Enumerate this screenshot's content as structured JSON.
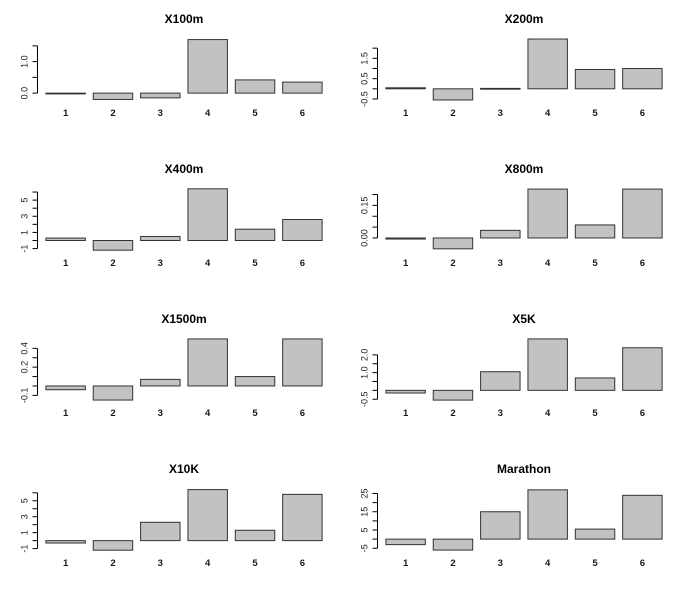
{
  "page": {
    "background": "#ffffff"
  },
  "style": {
    "bar_fill": "#c2c2c2",
    "bar_stroke": "#333333",
    "axis_color": "#000000",
    "text_color": "#1a1a1a"
  },
  "chart_data": [
    {
      "type": "bar",
      "title": "X100m",
      "categories": [
        "1",
        "2",
        "3",
        "4",
        "5",
        "6"
      ],
      "values": [
        -0.02,
        -0.2,
        -0.15,
        1.7,
        0.42,
        0.35
      ],
      "ylim": [
        -0.25,
        1.75
      ],
      "yticks": [
        0,
        0.5,
        1,
        1.5
      ],
      "ylabels": [
        {
          "at": 0,
          "text": "0.0"
        },
        {
          "at": 1,
          "text": "1.0"
        }
      ],
      "xlabel": "",
      "ylabel": "",
      "grid": false
    },
    {
      "type": "bar",
      "title": "X200m",
      "categories": [
        "1",
        "2",
        "3",
        "4",
        "5",
        "6"
      ],
      "values": [
        0.05,
        -0.55,
        0.02,
        2.45,
        0.95,
        1.0
      ],
      "ylim": [
        -0.6,
        2.5
      ],
      "yticks": [
        -0.5,
        0,
        0.5,
        1,
        1.5,
        2
      ],
      "ylabels": [
        {
          "at": -0.5,
          "text": "-0.5"
        },
        {
          "at": 0.5,
          "text": "0.5"
        },
        {
          "at": 1.5,
          "text": "1.5"
        }
      ],
      "xlabel": "",
      "ylabel": "",
      "grid": false
    },
    {
      "type": "bar",
      "title": "X400m",
      "categories": [
        "1",
        "2",
        "3",
        "4",
        "5",
        "6"
      ],
      "values": [
        0.3,
        -1.2,
        0.5,
        6.4,
        1.4,
        2.6
      ],
      "ylim": [
        -1.3,
        6.5
      ],
      "yticks": [
        -1,
        0,
        1,
        2,
        3,
        4,
        5,
        6
      ],
      "ylabels": [
        {
          "at": -1,
          "text": "-1"
        },
        {
          "at": 1,
          "text": "1"
        },
        {
          "at": 3,
          "text": "3"
        },
        {
          "at": 5,
          "text": "5"
        }
      ],
      "xlabel": "",
      "ylabel": "",
      "grid": false
    },
    {
      "type": "bar",
      "title": "X800m",
      "categories": [
        "1",
        "2",
        "3",
        "4",
        "5",
        "6"
      ],
      "values": [
        -0.005,
        -0.05,
        0.035,
        0.225,
        0.06,
        0.225
      ],
      "ylim": [
        -0.06,
        0.23
      ],
      "yticks": [
        0,
        0.05,
        0.1,
        0.15,
        0.2
      ],
      "ylabels": [
        {
          "at": 0,
          "text": "0.00"
        },
        {
          "at": 0.15,
          "text": "0.15"
        }
      ],
      "xlabel": "",
      "ylabel": "",
      "grid": false
    },
    {
      "type": "bar",
      "title": "X1500m",
      "categories": [
        "1",
        "2",
        "3",
        "4",
        "5",
        "6"
      ],
      "values": [
        -0.04,
        -0.15,
        0.07,
        0.5,
        0.1,
        0.5
      ],
      "ylim": [
        -0.16,
        0.51
      ],
      "yticks": [
        -0.1,
        0,
        0.1,
        0.2,
        0.3,
        0.4
      ],
      "ylabels": [
        {
          "at": -0.1,
          "text": "-0.1"
        },
        {
          "at": 0.2,
          "text": "0.2"
        },
        {
          "at": 0.4,
          "text": "0.4"
        }
      ],
      "xlabel": "",
      "ylabel": "",
      "grid": false
    },
    {
      "type": "bar",
      "title": "X5K",
      "categories": [
        "1",
        "2",
        "3",
        "4",
        "5",
        "6"
      ],
      "values": [
        -0.15,
        -0.55,
        1.05,
        2.9,
        0.7,
        2.4
      ],
      "ylim": [
        -0.6,
        2.95
      ],
      "yticks": [
        -0.5,
        0,
        0.5,
        1,
        1.5,
        2
      ],
      "ylabels": [
        {
          "at": -0.5,
          "text": "-0.5"
        },
        {
          "at": 1,
          "text": "1.0"
        },
        {
          "at": 2,
          "text": "2.0"
        }
      ],
      "xlabel": "",
      "ylabel": "",
      "grid": false
    },
    {
      "type": "bar",
      "title": "X10K",
      "categories": [
        "1",
        "2",
        "3",
        "4",
        "5",
        "6"
      ],
      "values": [
        -0.3,
        -1.2,
        2.3,
        6.4,
        1.3,
        5.8
      ],
      "ylim": [
        -1.3,
        6.6
      ],
      "yticks": [
        -1,
        0,
        1,
        2,
        3,
        4,
        5,
        6
      ],
      "ylabels": [
        {
          "at": -1,
          "text": "-1"
        },
        {
          "at": 1,
          "text": "1"
        },
        {
          "at": 3,
          "text": "3"
        },
        {
          "at": 5,
          "text": "5"
        }
      ],
      "xlabel": "",
      "ylabel": "",
      "grid": false
    },
    {
      "type": "bar",
      "title": "Marathon",
      "categories": [
        "1",
        "2",
        "3",
        "4",
        "5",
        "6"
      ],
      "values": [
        -3,
        -6,
        15,
        27,
        5.5,
        24
      ],
      "ylim": [
        -6.5,
        28
      ],
      "yticks": [
        -5,
        0,
        5,
        10,
        15,
        20,
        25
      ],
      "ylabels": [
        {
          "at": -5,
          "text": "-5"
        },
        {
          "at": 5,
          "text": "5"
        },
        {
          "at": 15,
          "text": "15"
        },
        {
          "at": 25,
          "text": "25"
        }
      ],
      "xlabel": "",
      "ylabel": "",
      "grid": false
    }
  ]
}
